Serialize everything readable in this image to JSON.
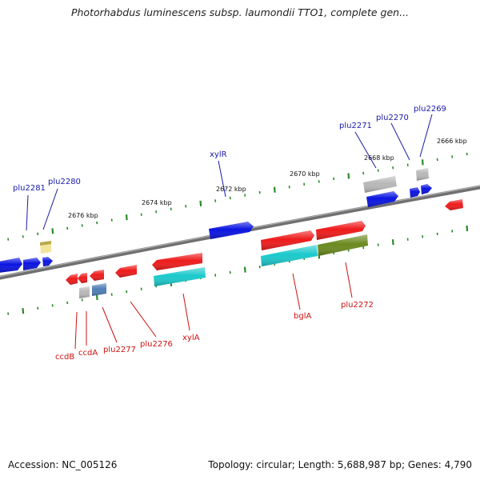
{
  "title": "Photorhabdus luminescens subsp. laumondii TTO1, complete gen...",
  "footer": {
    "accession": "Accession: NC_005126",
    "summary": "Topology: circular; Length: 5,688,987 bp; Genes: 4,790"
  },
  "colors": {
    "blue": "#0a14e0",
    "red": "#ee1b1b",
    "cyan": "#1bc9cc",
    "olive": "#6b8a1e",
    "gray": "#b8b8b8",
    "steel": "#4e7fb5",
    "yellow": "#f2e59a",
    "backbone": "#808080",
    "tick": "#2a8a2a",
    "blue_label": "#1a1aa8",
    "red_label": "#cc1111"
  },
  "scale_labels": [
    "2676 kbp",
    "2674 kbp",
    "2672 kbp",
    "2670 kbp",
    "2668 kbp",
    "2666 kbp"
  ],
  "top_labels": [
    "plu2281",
    "plu2280",
    "xylR",
    "plu2271",
    "plu2270",
    "plu2269"
  ],
  "bottom_labels": [
    "ccdB",
    "ccdA",
    "plu2277",
    "plu2276",
    "xylA",
    "bglA",
    "plu2272"
  ]
}
